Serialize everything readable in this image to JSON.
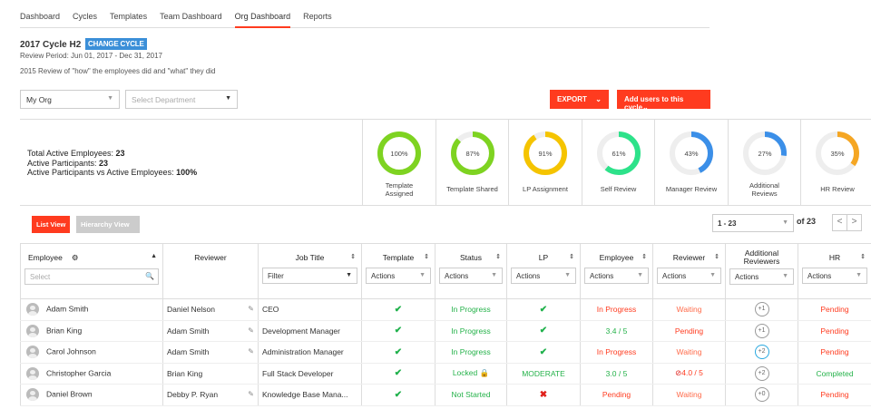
{
  "nav": [
    "Dashboard",
    "Cycles",
    "Templates",
    "Team Dashboard",
    "Org Dashboard",
    "Reports"
  ],
  "nav_active": 4,
  "cycle": {
    "title": "2017 Cycle H2",
    "change_label": "CHANGE CYCLE",
    "period": "Review Period: Jun 01, 2017 - Dec 31, 2017",
    "description": "2015 Review of \"how\" the employees did and \"what\" they did"
  },
  "filters": {
    "org": "My Org",
    "department_placeholder": "Select Department"
  },
  "actions": {
    "export": "EXPORT",
    "add_users": "Add users to this cycle"
  },
  "stats": {
    "total_label": "Total Active Employees: ",
    "total_value": "23",
    "participants_label": "Active Participants: ",
    "participants_value": "23",
    "ratio_label": "Active Participants vs Active Employees: ",
    "ratio_value": "100%"
  },
  "donuts": [
    {
      "label": "Template Assigned",
      "pct": 100,
      "text": "100%",
      "color": "#7ed321"
    },
    {
      "label": "Template Shared",
      "pct": 87,
      "text": "87%",
      "color": "#7ed321"
    },
    {
      "label": "LP Assignment",
      "pct": 91,
      "text": "91%",
      "color": "#f5c400"
    },
    {
      "label": "Self Review",
      "pct": 61,
      "text": "61%",
      "color": "#2de28a"
    },
    {
      "label": "Manager Review",
      "pct": 43,
      "text": "43%",
      "color": "#3b8fe8"
    },
    {
      "label": "Additional Reviews",
      "pct": 27,
      "text": "27%",
      "color": "#3b8fe8"
    },
    {
      "label": "HR Review",
      "pct": 35,
      "text": "35%",
      "color": "#f5a623"
    }
  ],
  "views": {
    "list": "List View",
    "hierarchy": "Hierarchy View"
  },
  "pagination": {
    "range": "1 - 23",
    "of": "of 23",
    "prev": "<",
    "next": ">"
  },
  "columns": {
    "employee": "Employee",
    "employee_placeholder": "Select",
    "reviewer": "Reviewer",
    "job_title": "Job Title",
    "job_filter": "Filter",
    "template": "Template",
    "status": "Status",
    "lp": "LP",
    "emp": "Employee",
    "rev": "Reviewer",
    "additional": "Additional Reviewers",
    "hr": "HR",
    "actions": "Actions"
  },
  "rows": [
    {
      "name": "Adam Smith",
      "reviewer": "Daniel Nelson",
      "edit": true,
      "job": "CEO",
      "template": "✔",
      "status": "In Progress",
      "lp": "✔",
      "employee": "In Progress",
      "reviewer_state": "Waiting",
      "additional": "+1",
      "hr": "Pending"
    },
    {
      "name": "Brian King",
      "reviewer": "Adam Smith",
      "edit": true,
      "job": "Development Manager",
      "template": "✔",
      "status": "In Progress",
      "lp": "✔",
      "employee": "3.4 / 5",
      "reviewer_state": "Pending",
      "additional": "+1",
      "hr": "Pending"
    },
    {
      "name": "Carol Johnson",
      "reviewer": "Adam Smith",
      "edit": true,
      "job": "Administration Manager",
      "template": "✔",
      "status": "In Progress",
      "lp": "✔",
      "employee": "In Progress",
      "reviewer_state": "Waiting",
      "additional": "+2",
      "hr": "Pending"
    },
    {
      "name": "Christopher Garcia",
      "reviewer": "Brian King",
      "edit": false,
      "job": "Full Stack Developer",
      "template": "✔",
      "status": "Locked 🔒",
      "lp": "MODERATE",
      "employee": "3.0 / 5",
      "reviewer_state": "4.0 / 5",
      "additional": "+2",
      "hr": "Completed"
    },
    {
      "name": "Daniel Brown",
      "reviewer": "Debby P. Ryan",
      "edit": true,
      "job": "Knowledge Base Mana...",
      "template": "✔",
      "status": "Not Started",
      "lp": "✖",
      "employee": "Pending",
      "reviewer_state": "Waiting",
      "additional": "+0",
      "hr": "Pending"
    }
  ]
}
